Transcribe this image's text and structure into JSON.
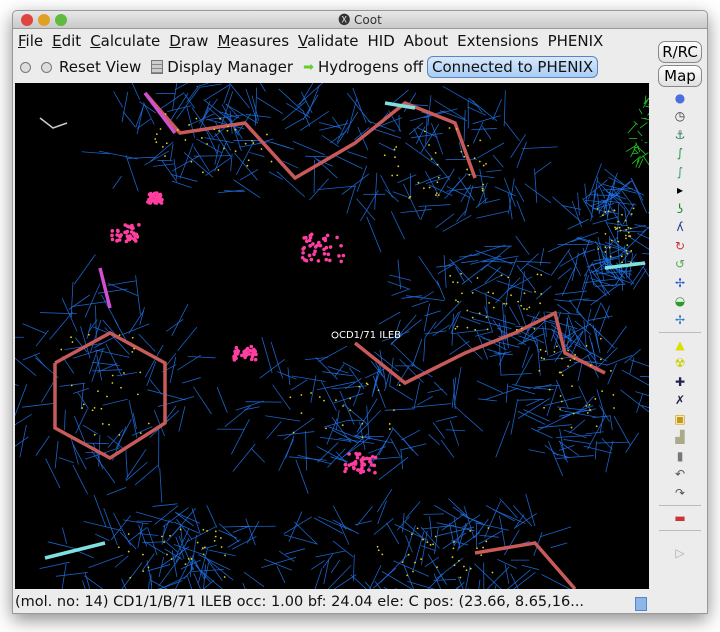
{
  "window": {
    "title": "Coot",
    "title_icon": "x11-icon"
  },
  "menu": [
    {
      "label": "File",
      "ul": "F",
      "rest": "ile"
    },
    {
      "label": "Edit",
      "ul": "E",
      "rest": "dit"
    },
    {
      "label": "Calculate",
      "ul": "C",
      "rest": "alculate"
    },
    {
      "label": "Draw",
      "ul": "D",
      "rest": "raw"
    },
    {
      "label": "Measures",
      "ul": "M",
      "rest": "easures"
    },
    {
      "label": "Validate",
      "ul": "V",
      "rest": "alidate"
    },
    {
      "label": "HID",
      "ul": "",
      "rest": "HID"
    },
    {
      "label": "About",
      "ul": "",
      "rest": "About"
    },
    {
      "label": "Extensions",
      "ul": "",
      "rest": "Extensions"
    },
    {
      "label": "PHENIX",
      "ul": "",
      "rest": "PHENIX"
    }
  ],
  "toolbar": {
    "reset_view": "Reset View",
    "display_manager": "Display Manager",
    "hydrogens": "Hydrogens off",
    "connected": "Connected to PHENIX"
  },
  "side": {
    "rrc": "R/RC",
    "map": "Map",
    "icons": [
      "go-to-atom",
      "clock-rotate",
      "rigid-body-fit",
      "real-space-refine",
      "regularize",
      "more-arrow",
      "rotamer",
      "flip",
      "torsion",
      "edit-chi",
      "pep-flip",
      "side-chain",
      "rotate-translate",
      "delete-hazard",
      "radioactive-delete",
      "add-atom",
      "add-terminal-residue",
      "place-atom",
      "mutate",
      "water-bucket",
      "undo",
      "redo",
      "sequence-view"
    ]
  },
  "graphics": {
    "atom_label": "CD1/71 ILEB",
    "colors": {
      "map": "#1e6fe0",
      "diff_map": "#22cc22",
      "carbon": "#c85a5a",
      "oxygen": "#d24fd2",
      "nitrogen": "#7fe0e0",
      "dots": "#e0d020",
      "clash": "#ff3fa0"
    }
  },
  "status": "(mol. no: 14)  CD1/1/B/71 ILEB occ:  1.00 bf: 24.04 ele:  C pos: (23.66, 8.65,16..."
}
